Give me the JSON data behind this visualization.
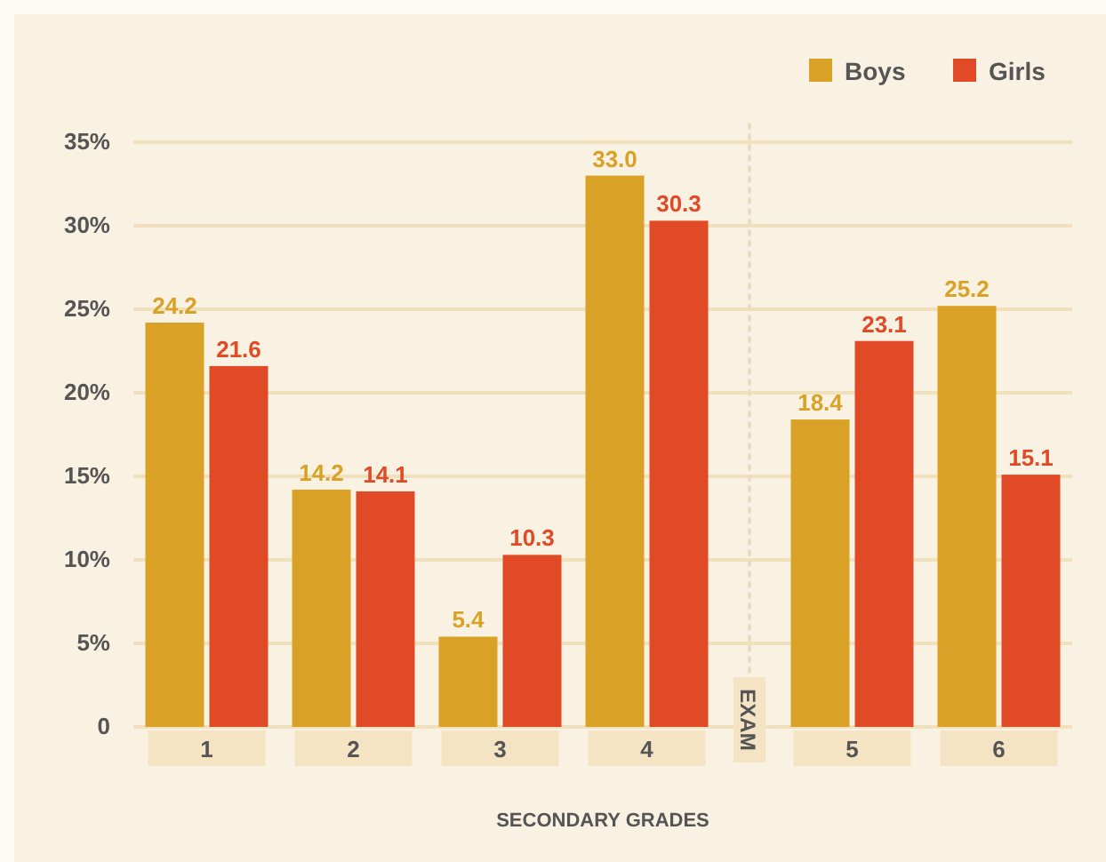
{
  "chart_data": {
    "type": "bar",
    "xlabel": "SECONDARY GRADES",
    "categories": [
      "1",
      "2",
      "3",
      "4",
      "EXAM",
      "5",
      "6"
    ],
    "series": [
      {
        "name": "Boys",
        "color": "#d9a126",
        "values": [
          24.2,
          14.2,
          5.4,
          33.0,
          null,
          18.4,
          25.2
        ],
        "value_labels": [
          "24.2",
          "14.2",
          "5.4",
          "33.0",
          null,
          "18.4",
          "25.2"
        ]
      },
      {
        "name": "Girls",
        "color": "#e04a26",
        "values": [
          21.6,
          14.1,
          10.3,
          30.3,
          null,
          23.1,
          15.1
        ],
        "value_labels": [
          "21.6",
          "14.1",
          "10.3",
          "30.3",
          null,
          "23.1",
          "15.1"
        ]
      }
    ],
    "ylim": [
      0,
      35
    ],
    "yticks": [
      {
        "value": 0,
        "label": "0"
      },
      {
        "value": 5,
        "label": "5%"
      },
      {
        "value": 10,
        "label": "10%"
      },
      {
        "value": 15,
        "label": "15%"
      },
      {
        "value": 20,
        "label": "20%"
      },
      {
        "value": 25,
        "label": "25%"
      },
      {
        "value": 30,
        "label": "30%"
      },
      {
        "value": 35,
        "label": "35%"
      }
    ],
    "ref_lines": [
      {
        "axis": "x",
        "value": "EXAM",
        "line_style": "dotted",
        "color": "#eadcc0"
      }
    ],
    "grid": "y",
    "legend": "top right"
  }
}
